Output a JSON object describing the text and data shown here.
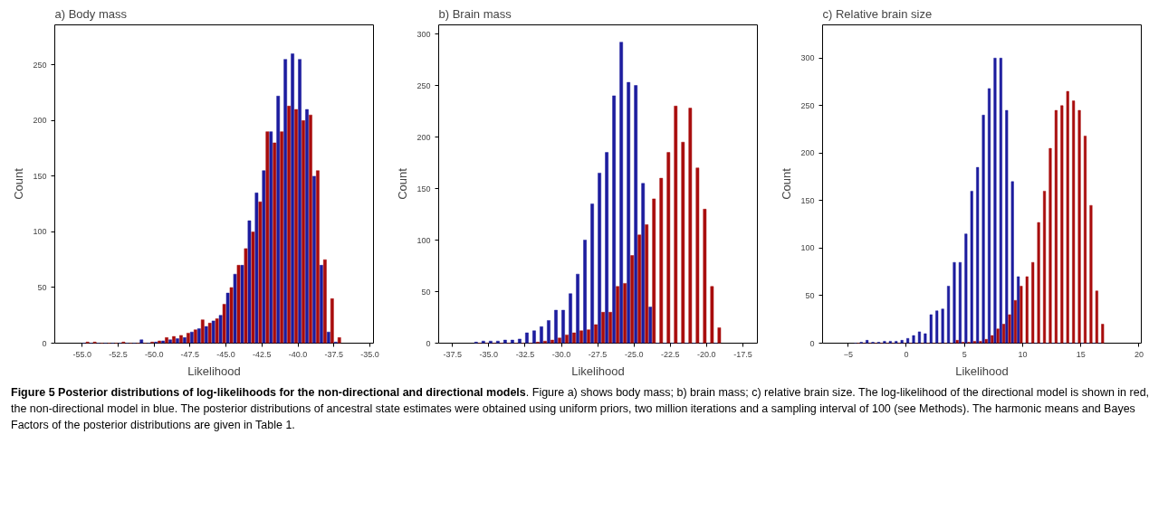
{
  "chart_data": [
    {
      "type": "histogram",
      "title": "a) Body mass",
      "xlabel": "Likelihood",
      "ylabel": "Count",
      "bins": [
        -55.0,
        -54.5,
        -54.0,
        -53.5,
        -53.0,
        -52.5,
        -52.0,
        -51.5,
        -51.0,
        -50.5,
        -50.0,
        -49.5,
        -49.0,
        -48.5,
        -48.0,
        -47.5,
        -47.0,
        -46.5,
        -46.0,
        -45.5,
        -45.0,
        -44.5,
        -44.0,
        -43.5,
        -43.0,
        -42.5,
        -42.0,
        -41.5,
        -41.0,
        -40.5,
        -40.0,
        -39.5,
        -39.0,
        -38.5,
        -38.0,
        -37.5,
        -37.0
      ],
      "series": [
        {
          "color": "#1c1c9e",
          "values": [
            0,
            0,
            0,
            0,
            0,
            0,
            0,
            0,
            3,
            0,
            1,
            2,
            3,
            4,
            5,
            10,
            13,
            15,
            20,
            25,
            45,
            62,
            70,
            110,
            135,
            155,
            190,
            222,
            255,
            260,
            255,
            210,
            150,
            70,
            10,
            1
          ]
        },
        {
          "color": "#a80c0c",
          "values": [
            1,
            1,
            0,
            0,
            0,
            1,
            0,
            0,
            0,
            1,
            2,
            5,
            6,
            7,
            9,
            12,
            21,
            18,
            22,
            35,
            50,
            70,
            85,
            100,
            127,
            190,
            180,
            190,
            213,
            210,
            200,
            205,
            155,
            75,
            40,
            5
          ]
        }
      ],
      "xlim": [
        -56.9,
        -34.75
      ],
      "ylim": [
        0,
        286
      ],
      "xticks": [
        {
          "value": -55,
          "label": "-55.0"
        },
        {
          "value": -52.5,
          "label": "-52.5"
        },
        {
          "value": -50,
          "label": "-50.0"
        },
        {
          "value": -47.5,
          "label": "-47.5"
        },
        {
          "value": -45,
          "label": "-45.0"
        },
        {
          "value": -42.5,
          "label": "-42.5"
        },
        {
          "value": -40,
          "label": "-40.0"
        },
        {
          "value": -37.5,
          "label": "-37.5"
        },
        {
          "value": -35,
          "label": "-35.0"
        }
      ],
      "yticks": [
        0,
        50,
        100,
        150,
        200,
        250
      ],
      "annotations": [
        "Figure 5 Posterior distributions of log-likelihoods for the non-directional and directional models",
        ". Figure a) shows body mass; b) brain mass; c) relative brain size. The log-likelihood of the directional model is shown in red, the non-directional model in blue. The posterior distributions of ancestral state estimates were obtained using uniform priors, two million iterations and a sampling interval of 100 (see Methods). The harmonic means and Bayes Factors of the posterior distributions are given in Table 1."
      ]
    },
    {
      "type": "histogram",
      "title": "b) Brain mass",
      "xlabel": "Likelihood",
      "ylabel": "Count",
      "bins": [
        -36.0,
        -35.5,
        -35.0,
        -34.5,
        -34.0,
        -33.5,
        -33.0,
        -32.5,
        -32.0,
        -31.5,
        -31.0,
        -30.5,
        -30.0,
        -29.5,
        -29.0,
        -28.5,
        -28.0,
        -27.5,
        -27.0,
        -26.5,
        -26.0,
        -25.5,
        -25.0,
        -24.5,
        -24.0,
        -23.5,
        -23.0,
        -22.5,
        -22.0,
        -21.5,
        -21.0,
        -20.5,
        -20.0,
        -19.5,
        -19.0
      ],
      "series": [
        {
          "color": "#1c1c9e",
          "values": [
            1,
            2,
            2,
            2,
            3,
            3,
            4,
            10,
            12,
            16,
            22,
            32,
            32,
            48,
            67,
            100,
            135,
            165,
            185,
            240,
            292,
            253,
            250,
            155,
            35,
            0,
            0,
            0,
            0,
            0,
            0,
            0,
            0,
            0
          ]
        },
        {
          "color": "#a80c0c",
          "values": [
            0,
            0,
            0,
            0,
            0,
            0,
            0,
            0,
            1,
            2,
            3,
            5,
            8,
            10,
            12,
            13,
            18,
            30,
            30,
            55,
            58,
            85,
            105,
            115,
            140,
            160,
            185,
            230,
            195,
            228,
            170,
            130,
            55,
            15
          ]
        }
      ],
      "xlim": [
        -38.45,
        -16.5
      ],
      "ylim": [
        0,
        308.8
      ],
      "xticks": [
        {
          "value": -37.5,
          "label": "-37.5"
        },
        {
          "value": -35,
          "label": "-35.0"
        },
        {
          "value": -32.5,
          "label": "-32.5"
        },
        {
          "value": -30,
          "label": "-30.0"
        },
        {
          "value": -27.5,
          "label": "-27.5"
        },
        {
          "value": -25,
          "label": "-25.0"
        },
        {
          "value": -22.5,
          "label": "-22.5"
        },
        {
          "value": -20,
          "label": "-20.0"
        },
        {
          "value": -17.5,
          "label": "-17.5"
        }
      ],
      "yticks": [
        0,
        50,
        100,
        150,
        200,
        250,
        300
      ]
    },
    {
      "type": "histogram",
      "title": "c) Relative brain size",
      "xlabel": "Likelihood",
      "ylabel": "Count",
      "bins": [
        -4.5,
        -4.0,
        -3.5,
        -3.0,
        -2.5,
        -2.0,
        -1.5,
        -1.0,
        -0.5,
        0.0,
        0.5,
        1.0,
        1.5,
        2.0,
        2.5,
        3.0,
        3.5,
        4.0,
        4.5,
        5.0,
        5.5,
        6.0,
        6.5,
        7.0,
        7.5,
        8.0,
        8.5,
        9.0,
        9.5,
        10.0,
        10.5,
        11.0,
        11.5,
        12.0,
        12.5,
        13.0,
        13.5,
        14.0,
        14.5,
        15.0,
        15.5,
        16.0,
        16.5,
        17.0
      ],
      "series": [
        {
          "color": "#1c1c9e",
          "values": [
            0,
            1,
            3,
            1,
            1,
            2,
            2,
            2,
            3,
            5,
            8,
            12,
            10,
            30,
            34,
            36,
            60,
            85,
            85,
            115,
            160,
            185,
            240,
            268,
            300,
            300,
            245,
            170,
            70,
            0,
            0,
            0,
            0,
            0,
            0,
            0,
            0,
            0,
            0,
            0,
            0,
            0,
            0
          ]
        },
        {
          "color": "#a80c0c",
          "values": [
            0,
            0,
            0,
            0,
            0,
            0,
            0,
            0,
            0,
            0,
            0,
            0,
            0,
            0,
            0,
            0,
            0,
            3,
            1,
            1,
            2,
            2,
            4,
            8,
            15,
            20,
            30,
            45,
            60,
            70,
            85,
            127,
            160,
            205,
            245,
            250,
            265,
            255,
            245,
            218,
            145,
            55,
            20
          ]
        }
      ],
      "xlim": [
        -7.2,
        20.2
      ],
      "ylim": [
        0,
        335
      ],
      "xticks": [
        -5,
        0,
        5,
        10,
        15,
        20
      ],
      "yticks": [
        0,
        50,
        100,
        150,
        200,
        250,
        300
      ]
    }
  ]
}
